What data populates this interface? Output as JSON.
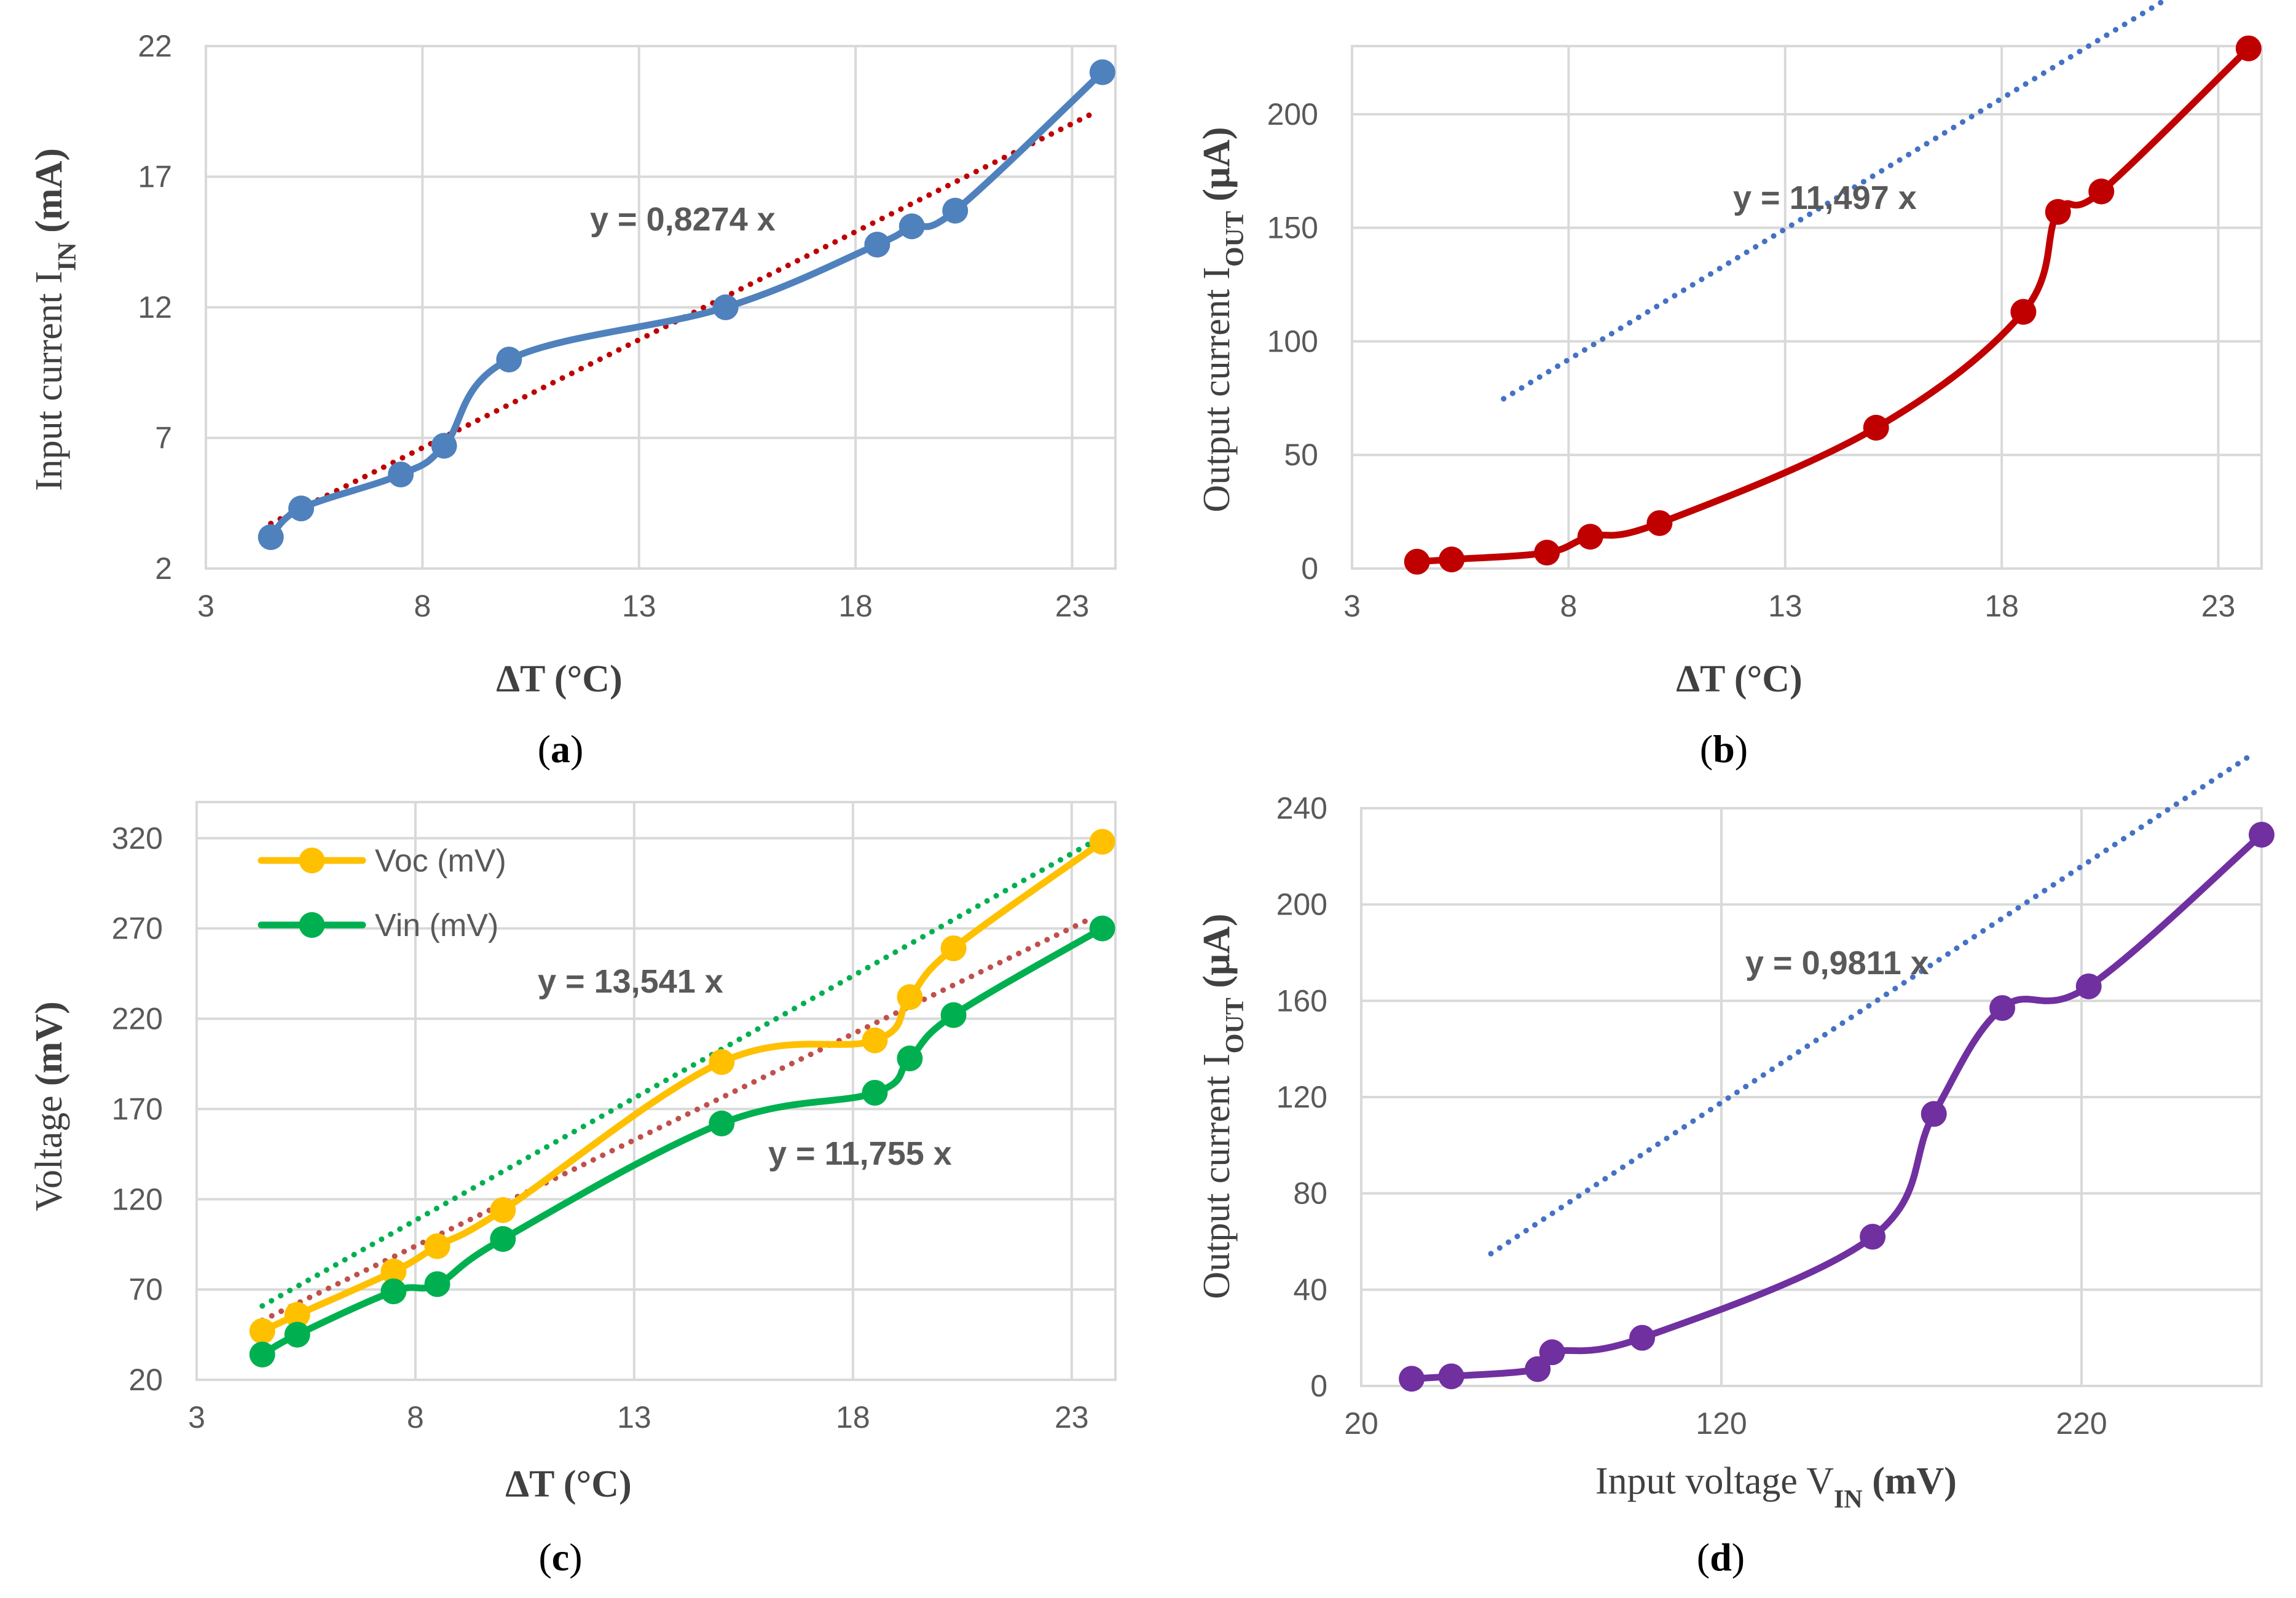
{
  "chart_data": [
    {
      "id": "a",
      "type": "line",
      "panel_label": {
        "open": "(",
        "letter": "a",
        "close": ")"
      },
      "xlabel": "ΔT (°C)",
      "ylabel": {
        "text": "Input current I",
        "sub": "IN",
        "unit": " (mA)"
      },
      "xlim": [
        3,
        24
      ],
      "ylim": [
        2,
        22
      ],
      "xticks": [
        "3",
        "8",
        "13",
        "18",
        "23"
      ],
      "yticks": [
        "2",
        "7",
        "12",
        "17",
        "22"
      ],
      "grid": true,
      "series": [
        {
          "color": "#4f81bd",
          "x": [
            4.5,
            5.2,
            7.5,
            8.5,
            10.0,
            15.0,
            18.5,
            19.3,
            20.3,
            23.7
          ],
          "y": [
            3.2,
            4.3,
            5.6,
            6.7,
            10.0,
            12.0,
            14.4,
            15.1,
            15.7,
            21.0
          ]
        }
      ],
      "trendlines": [
        {
          "color": "#c00000",
          "slope": 0.8274,
          "x_range": [
            4.5,
            23.5
          ],
          "label": "y = 0,8274 x"
        }
      ]
    },
    {
      "id": "b",
      "type": "line",
      "panel_label": {
        "open": "(",
        "letter": "b",
        "close": ")"
      },
      "xlabel": "ΔT (°C)",
      "ylabel": {
        "text": "Output current I",
        "sub": "OUT",
        "unit": " (μA)"
      },
      "xlim": [
        3,
        24
      ],
      "ylim": [
        0,
        230
      ],
      "xticks": [
        "3",
        "8",
        "13",
        "18",
        "23"
      ],
      "yticks": [
        "0",
        "50",
        "100",
        "150",
        "200"
      ],
      "grid": true,
      "series": [
        {
          "color": "#c00000",
          "x": [
            4.5,
            5.3,
            7.5,
            8.5,
            10.1,
            15.1,
            18.5,
            19.3,
            20.3,
            23.7
          ],
          "y": [
            3,
            4,
            7,
            14,
            20,
            62,
            113,
            157,
            166,
            229
          ]
        }
      ],
      "trendlines": [
        {
          "color": "#4472c4",
          "slope": 11.497,
          "x_range": [
            6.5,
            23.5
          ],
          "label": "y = 11,497 x"
        }
      ]
    },
    {
      "id": "c",
      "type": "line",
      "panel_label": {
        "open": "(",
        "letter": "c",
        "close": ")"
      },
      "xlabel": "ΔT (°C)",
      "ylabel": {
        "text": "Voltage ",
        "sub": "",
        "unit": " (mV)"
      },
      "xlim": [
        3,
        24
      ],
      "ylim": [
        20,
        340
      ],
      "xticks": [
        "3",
        "8",
        "13",
        "18",
        "23"
      ],
      "yticks": [
        "20",
        "70",
        "120",
        "170",
        "220",
        "270",
        "320"
      ],
      "grid": true,
      "legend": {
        "position": "top-left"
      },
      "series": [
        {
          "name": "Voc (mV)",
          "color": "#ffc000",
          "x": [
            4.5,
            5.3,
            7.5,
            8.5,
            10.0,
            15.0,
            18.5,
            19.3,
            20.3,
            23.7
          ],
          "y": [
            47,
            56,
            80,
            94,
            114,
            196,
            208,
            232,
            259,
            318
          ]
        },
        {
          "name": "Vin (mV)",
          "color": "#00b050",
          "x": [
            4.5,
            5.3,
            7.5,
            8.5,
            10.0,
            15.0,
            18.5,
            19.3,
            20.3,
            23.7
          ],
          "y": [
            34,
            45,
            69,
            73,
            98,
            162,
            179,
            198,
            222,
            270
          ]
        }
      ],
      "trendlines": [
        {
          "color": "#00b050",
          "slope": 13.541,
          "x_range": [
            4.5,
            23.5
          ],
          "label": "y = 13,541 x"
        },
        {
          "color": "#c0504d",
          "slope": 11.755,
          "x_range": [
            4.5,
            23.5
          ],
          "label": "y = 11,755 x"
        }
      ]
    },
    {
      "id": "d",
      "type": "line",
      "panel_label": {
        "open": "(",
        "letter": "d",
        "close": ")"
      },
      "xlabel": {
        "text": "Input voltage V",
        "sub": "IN",
        "unit": " (mV)"
      },
      "ylabel": {
        "text": "Output current I",
        "sub": "OUT",
        "unit": " (μA)"
      },
      "xlim": [
        20,
        270
      ],
      "ylim": [
        0,
        240
      ],
      "xticks": [
        "20",
        "120",
        "220"
      ],
      "yticks": [
        "0",
        "40",
        "80",
        "120",
        "160",
        "200",
        "240"
      ],
      "grid": true,
      "series": [
        {
          "color": "#7030a0",
          "x": [
            34,
            45,
            69,
            73,
            98,
            162,
            179,
            198,
            222,
            270
          ],
          "y": [
            3,
            4,
            7,
            14,
            20,
            62,
            113,
            157,
            166,
            229
          ]
        }
      ],
      "trendlines": [
        {
          "color": "#4472c4",
          "slope": 0.9811,
          "x_range": [
            56,
            266
          ],
          "label": "y = 0,9811 x"
        }
      ]
    }
  ]
}
